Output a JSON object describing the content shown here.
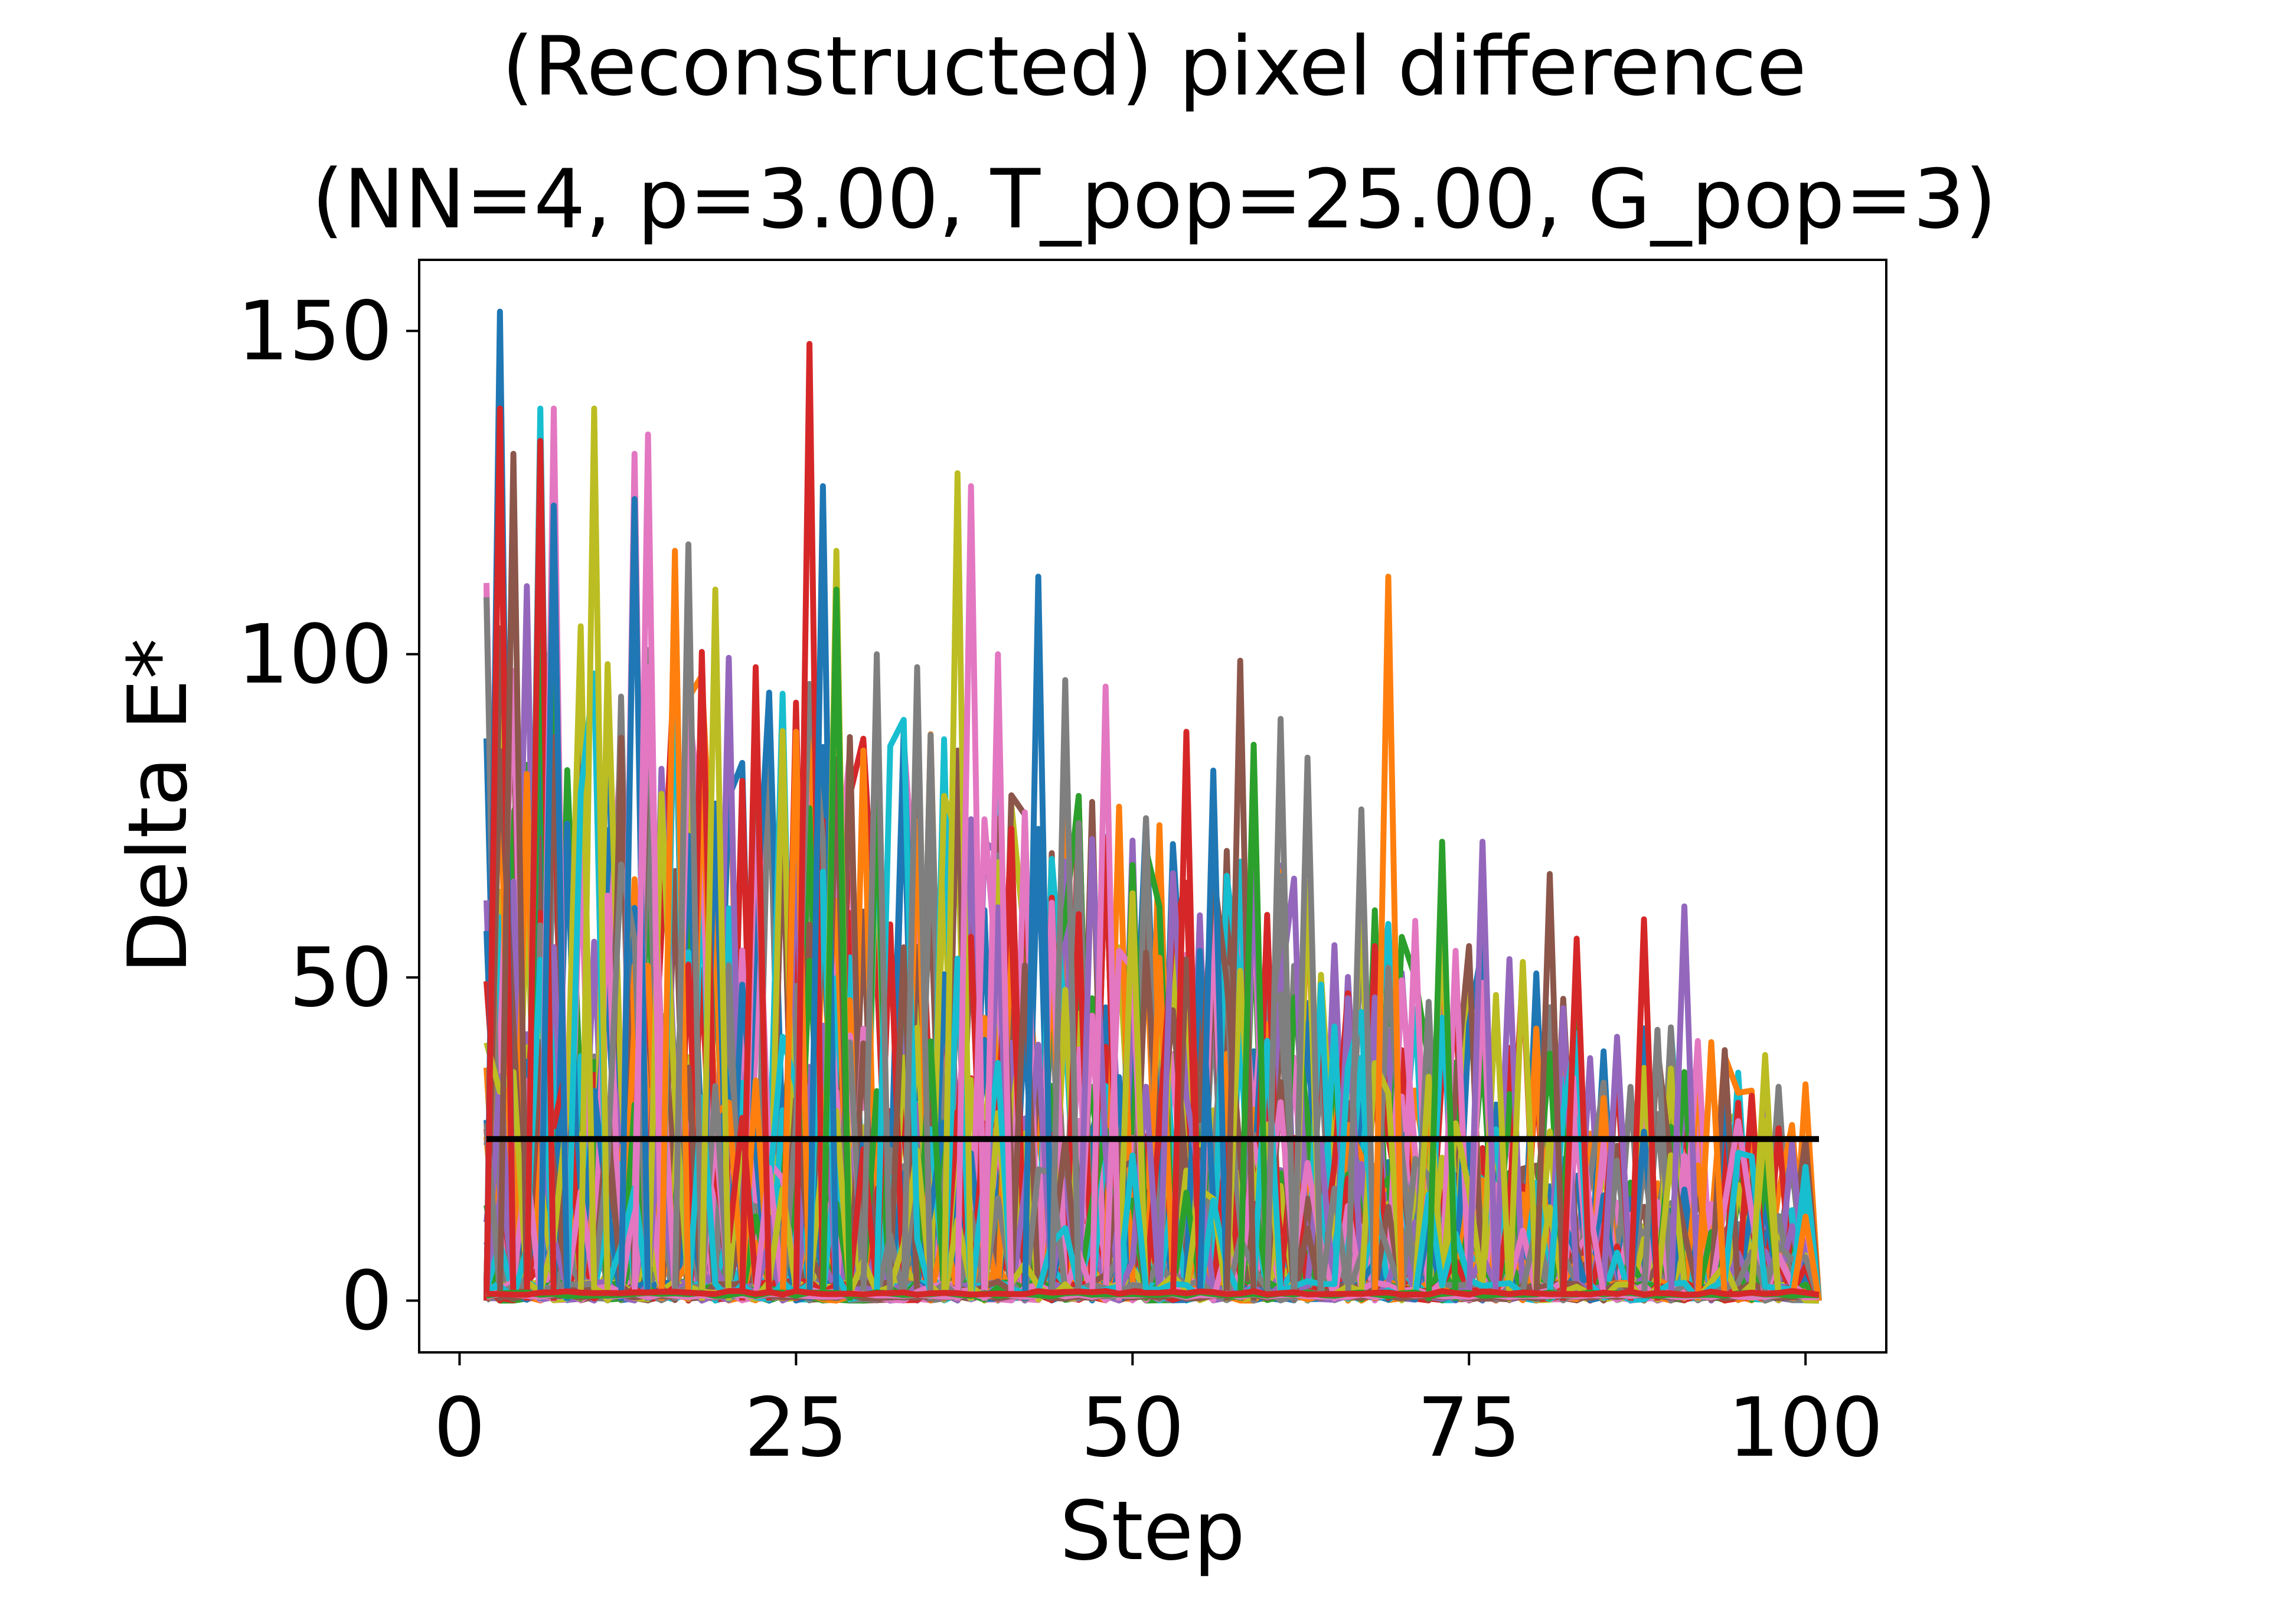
{
  "chart_data": {
    "type": "line",
    "title": "(Reconstructed) pixel difference",
    "subtitle": "(NN=4, p=3.00, T_pop=25.00, G_pop=3)",
    "xlabel": "Step",
    "ylabel": "Delta E*",
    "xlim": [
      -3,
      106
    ],
    "ylim": [
      -8,
      161
    ],
    "x_ticks": [
      0,
      25,
      50,
      75,
      100
    ],
    "y_ticks": [
      0,
      50,
      100,
      150
    ],
    "x_tick_labels": [
      "0",
      "25",
      "50",
      "75",
      "100"
    ],
    "y_tick_labels": [
      "0",
      "50",
      "100",
      "150"
    ],
    "grid": false,
    "legend": "none",
    "x_range": [
      2,
      101
    ],
    "palette": [
      "#1f77b4",
      "#ff7f0e",
      "#2ca02c",
      "#d62728",
      "#9467bd",
      "#8c564b",
      "#e377c2",
      "#7f7f7f",
      "#bcbd22",
      "#17becf"
    ],
    "threshold": {
      "y": 25,
      "x": [
        2,
        101
      ],
      "color": "#000000"
    },
    "series_style": "many overlapping colored series (per-pixel Delta E* per step), spiky, peaks decaying from ~150 at step 3 to ~40 near step 100, most values near 0",
    "peaks": [
      {
        "x": 3,
        "y": 153,
        "color": "#1f77b4"
      },
      {
        "x": 3,
        "y": 138,
        "color": "#d62728"
      },
      {
        "x": 4,
        "y": 131,
        "color": "#8c564b"
      },
      {
        "x": 6,
        "y": 138,
        "color": "#17becf"
      },
      {
        "x": 6,
        "y": 133,
        "color": "#d62728"
      },
      {
        "x": 7,
        "y": 138,
        "color": "#e377c2"
      },
      {
        "x": 7,
        "y": 123,
        "color": "#1f77b4"
      },
      {
        "x": 10,
        "y": 138,
        "color": "#bcbd22"
      },
      {
        "x": 13,
        "y": 131,
        "color": "#e377c2"
      },
      {
        "x": 13,
        "y": 124,
        "color": "#1f77b4"
      },
      {
        "x": 14,
        "y": 134,
        "color": "#e377c2"
      },
      {
        "x": 16,
        "y": 116,
        "color": "#ff7f0e"
      },
      {
        "x": 17,
        "y": 117,
        "color": "#7f7f7f"
      },
      {
        "x": 19,
        "y": 110,
        "color": "#bcbd22"
      },
      {
        "x": 22,
        "y": 98,
        "color": "#d62728"
      },
      {
        "x": 25,
        "y": 88,
        "color": "#ff7f0e"
      },
      {
        "x": 26,
        "y": 148,
        "color": "#d62728"
      },
      {
        "x": 27,
        "y": 126,
        "color": "#1f77b4"
      },
      {
        "x": 28,
        "y": 116,
        "color": "#bcbd22"
      },
      {
        "x": 28,
        "y": 110,
        "color": "#2ca02c"
      },
      {
        "x": 31,
        "y": 100,
        "color": "#7f7f7f"
      },
      {
        "x": 34,
        "y": 98,
        "color": "#7f7f7f"
      },
      {
        "x": 37,
        "y": 128,
        "color": "#bcbd22"
      },
      {
        "x": 38,
        "y": 126,
        "color": "#e377c2"
      },
      {
        "x": 40,
        "y": 100,
        "color": "#e377c2"
      },
      {
        "x": 43,
        "y": 112,
        "color": "#1f77b4"
      },
      {
        "x": 45,
        "y": 96,
        "color": "#7f7f7f"
      },
      {
        "x": 48,
        "y": 95,
        "color": "#e377c2"
      },
      {
        "x": 54,
        "y": 88,
        "color": "#d62728"
      },
      {
        "x": 56,
        "y": 82,
        "color": "#1f77b4"
      },
      {
        "x": 58,
        "y": 99,
        "color": "#8c564b"
      },
      {
        "x": 59,
        "y": 86,
        "color": "#2ca02c"
      },
      {
        "x": 61,
        "y": 90,
        "color": "#7f7f7f"
      },
      {
        "x": 63,
        "y": 84,
        "color": "#7f7f7f"
      },
      {
        "x": 67,
        "y": 76,
        "color": "#7f7f7f"
      },
      {
        "x": 69,
        "y": 112,
        "color": "#ff7f0e"
      },
      {
        "x": 73,
        "y": 71,
        "color": "#2ca02c"
      },
      {
        "x": 76,
        "y": 71,
        "color": "#9467bd"
      },
      {
        "x": 81,
        "y": 66,
        "color": "#8c564b"
      },
      {
        "x": 83,
        "y": 56,
        "color": "#d62728"
      },
      {
        "x": 88,
        "y": 59,
        "color": "#d62728"
      },
      {
        "x": 91,
        "y": 61,
        "color": "#9467bd"
      },
      {
        "x": 93,
        "y": 40,
        "color": "#ff7f0e"
      },
      {
        "x": 97,
        "y": 38,
        "color": "#bcbd22"
      },
      {
        "x": 100,
        "y": 13,
        "color": "#ff7f0e"
      }
    ]
  }
}
